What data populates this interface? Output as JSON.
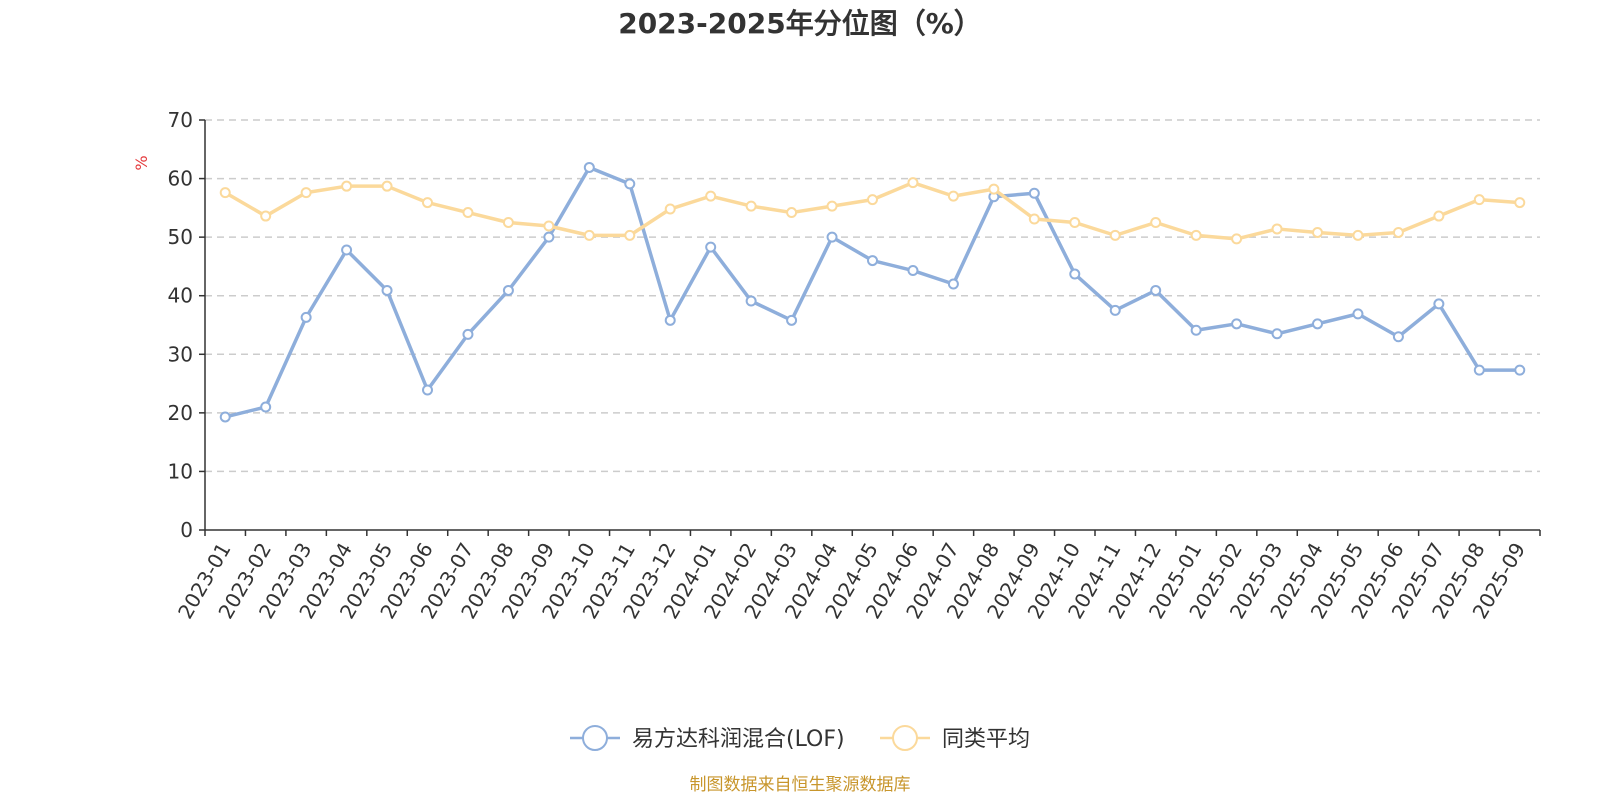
{
  "chart_data": {
    "type": "line",
    "title": "2023-2025年分位图（%）",
    "ylabel": "%",
    "xlabel": "",
    "ylim": [
      0,
      70
    ],
    "yticks": [
      0,
      10,
      20,
      30,
      40,
      50,
      60,
      70
    ],
    "grid": true,
    "legend_position": "bottom-center",
    "categories": [
      "2023-01",
      "2023-02",
      "2023-03",
      "2023-04",
      "2023-05",
      "2023-06",
      "2023-07",
      "2023-08",
      "2023-09",
      "2023-10",
      "2023-11",
      "2023-12",
      "2024-01",
      "2024-02",
      "2024-03",
      "2024-04",
      "2024-05",
      "2024-06",
      "2024-07",
      "2024-08",
      "2024-09",
      "2024-10",
      "2024-11",
      "2024-12",
      "2025-01",
      "2025-02",
      "2025-03",
      "2025-04",
      "2025-05",
      "2025-06",
      "2025-07",
      "2025-08",
      "2025-09"
    ],
    "series": [
      {
        "name": "易方达科润混合(LOF)",
        "color": "#8eaedb",
        "values": [
          19.3,
          21.0,
          36.3,
          47.8,
          40.9,
          23.9,
          33.4,
          40.9,
          50.0,
          61.9,
          59.1,
          35.8,
          48.3,
          39.1,
          35.8,
          50.0,
          46.0,
          44.3,
          42.0,
          56.9,
          57.5,
          43.7,
          37.5,
          40.9,
          34.1,
          35.2,
          33.5,
          35.2,
          36.9,
          33.0,
          38.6,
          27.3,
          27.3
        ]
      },
      {
        "name": "同类平均",
        "color": "#fbd99b",
        "values": [
          57.6,
          53.6,
          57.6,
          58.7,
          58.7,
          55.9,
          54.2,
          52.5,
          51.9,
          50.3,
          50.3,
          54.8,
          57.0,
          55.3,
          54.2,
          55.3,
          56.4,
          59.3,
          57.0,
          58.2,
          53.1,
          52.5,
          50.3,
          52.5,
          50.3,
          49.7,
          51.4,
          50.8,
          50.3,
          50.8,
          53.6,
          56.4,
          55.9
        ]
      }
    ]
  },
  "source_text": "制图数据来自恒生聚源数据库",
  "colors": {
    "title": "#333333",
    "axis": "#333333",
    "grid": "#cccccc",
    "unit": "#e4393c",
    "source": "#c8962c"
  }
}
